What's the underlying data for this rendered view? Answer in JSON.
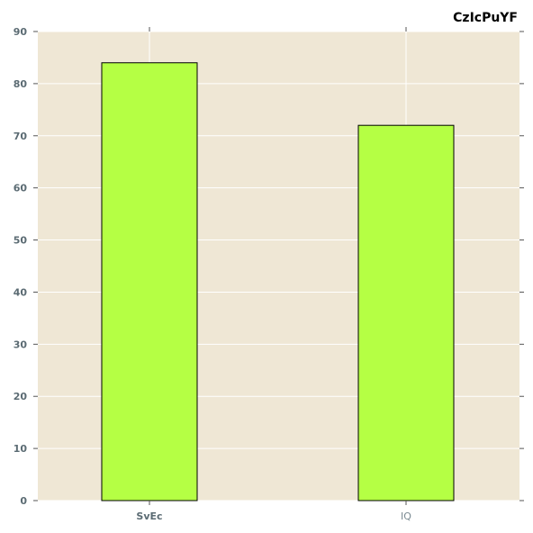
{
  "chart_data": {
    "type": "bar",
    "title": "CzIcPuYF",
    "xlabel": "",
    "ylabel": "",
    "categories": [
      "SvEc",
      "IQ"
    ],
    "category_bold": [
      true,
      false
    ],
    "values": [
      84,
      72
    ],
    "ylim": [
      0,
      90
    ],
    "yticks": [
      0,
      10,
      20,
      30,
      40,
      50,
      60,
      70,
      80,
      90
    ],
    "grid": true,
    "colors": {
      "bar": "#b5ff44",
      "bar_edge": "#000000",
      "plot_background": "#efe7d5",
      "grid": "#ffffff",
      "tick_label": "#5b6b73"
    }
  }
}
